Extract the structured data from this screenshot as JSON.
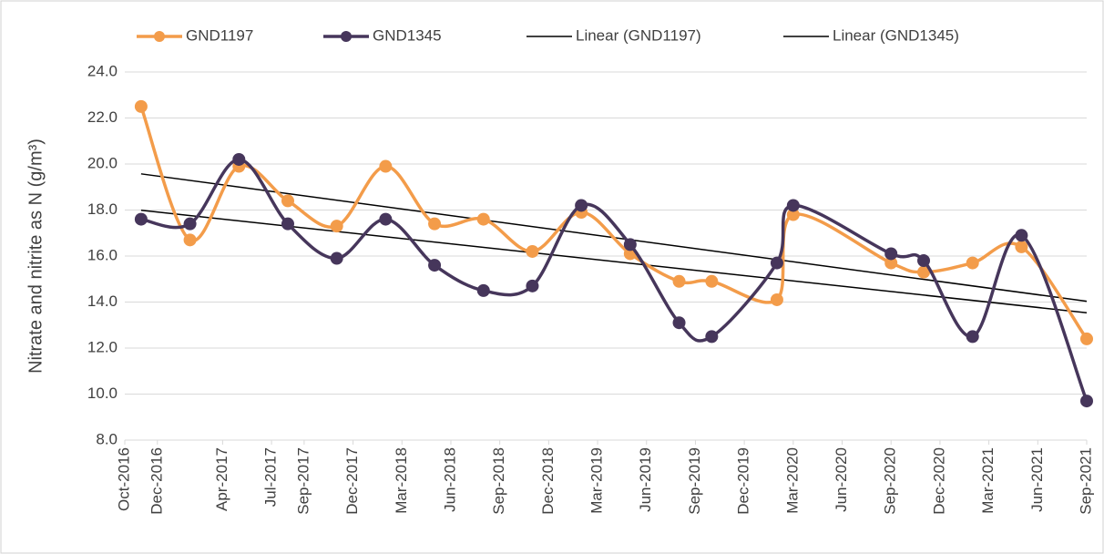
{
  "chart_data": {
    "type": "line",
    "y_label": "Nitrate and nitrite as N (g/m³)",
    "x": [
      "2016-11",
      "2017-02",
      "2017-05",
      "2017-08",
      "2017-11",
      "2018-02",
      "2018-05",
      "2018-08",
      "2018-11",
      "2019-02",
      "2019-05",
      "2019-08",
      "2019-10",
      "2020-02",
      "2020-03",
      "2020-09",
      "2020-11",
      "2021-02",
      "2021-05",
      "2021-09"
    ],
    "series": [
      {
        "name": "GND1197",
        "color": "#f39c4a",
        "values": [
          22.5,
          16.7,
          19.9,
          18.4,
          17.3,
          19.9,
          17.4,
          17.6,
          16.2,
          17.9,
          16.1,
          14.9,
          14.9,
          14.1,
          17.8,
          15.7,
          15.3,
          15.7,
          16.4,
          12.4
        ],
        "trendline": {
          "name": "Linear (GND1197)",
          "color": "#000000"
        }
      },
      {
        "name": "GND1345",
        "color": "#46365b",
        "values": [
          17.6,
          17.4,
          20.2,
          17.4,
          15.9,
          17.6,
          15.6,
          14.5,
          14.7,
          18.2,
          16.5,
          13.1,
          12.5,
          15.7,
          18.2,
          16.1,
          15.8,
          12.5,
          16.9,
          9.7
        ],
        "trendline": {
          "name": "Linear (GND1345)",
          "color": "#000000"
        }
      }
    ],
    "xlim": [
      "2016-10",
      "2021-09"
    ],
    "xticks": [
      {
        "value": "2016-10",
        "label": "Oct-2016"
      },
      {
        "value": "2016-12",
        "label": "Dec-2016"
      },
      {
        "value": "2017-04",
        "label": "Apr-2017"
      },
      {
        "value": "2017-07",
        "label": "Jul-2017"
      },
      {
        "value": "2017-09",
        "label": "Sep-2017"
      },
      {
        "value": "2017-12",
        "label": "Dec-2017"
      },
      {
        "value": "2018-03",
        "label": "Mar-2018"
      },
      {
        "value": "2018-06",
        "label": "Jun-2018"
      },
      {
        "value": "2018-09",
        "label": "Sep-2018"
      },
      {
        "value": "2018-12",
        "label": "Dec-2018"
      },
      {
        "value": "2019-03",
        "label": "Mar-2019"
      },
      {
        "value": "2019-06",
        "label": "Jun-2019"
      },
      {
        "value": "2019-09",
        "label": "Sep-2019"
      },
      {
        "value": "2019-12",
        "label": "Dec-2019"
      },
      {
        "value": "2020-03",
        "label": "Mar-2020"
      },
      {
        "value": "2020-06",
        "label": "Jun-2020"
      },
      {
        "value": "2020-09",
        "label": "Sep-2020"
      },
      {
        "value": "2020-12",
        "label": "Dec-2020"
      },
      {
        "value": "2021-03",
        "label": "Mar-2021"
      },
      {
        "value": "2021-06",
        "label": "Jun-2021"
      },
      {
        "value": "2021-09",
        "label": "Sep-2021"
      }
    ],
    "ylim": [
      8,
      24
    ],
    "yticks": [
      {
        "value": 8,
        "label": "8.0"
      },
      {
        "value": 10,
        "label": "10.0"
      },
      {
        "value": 12,
        "label": "12.0"
      },
      {
        "value": 14,
        "label": "14.0"
      },
      {
        "value": 16,
        "label": "16.0"
      },
      {
        "value": 18,
        "label": "18.0"
      },
      {
        "value": 20,
        "label": "20.0"
      },
      {
        "value": 22,
        "label": "22.0"
      },
      {
        "value": 24,
        "label": "24.0"
      }
    ],
    "grid": true,
    "smooth": true,
    "legend": "top"
  }
}
